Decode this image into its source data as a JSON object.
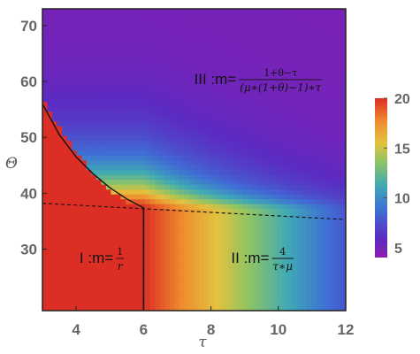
{
  "chart_data": {
    "type": "heatmap",
    "xlabel": "τ",
    "ylabel": "Θ",
    "xlim": [
      3,
      12
    ],
    "ylim": [
      19,
      73
    ],
    "xticks": [
      "4",
      "6",
      "8",
      "10",
      "12"
    ],
    "xtick_values": [
      4,
      6,
      8,
      10,
      12
    ],
    "yticks": [
      "30",
      "40",
      "50",
      "60",
      "70"
    ],
    "ytick_values": [
      30,
      40,
      50,
      60,
      70
    ],
    "colorbar": {
      "range": [
        4,
        20
      ],
      "ticks": [
        "5",
        "10",
        "15",
        "20"
      ],
      "tick_values": [
        5,
        10,
        15,
        20
      ]
    },
    "regions": [
      {
        "roman": "I",
        "prefix": " :m=",
        "formula_num": "1",
        "formula_den": "r",
        "anchor": [
          4.1,
          28.5
        ]
      },
      {
        "roman": "II",
        "prefix": " :m=",
        "formula_num": "4",
        "formula_den": "τ∗μ",
        "anchor": [
          8.6,
          28.5
        ]
      },
      {
        "roman": "III",
        "prefix": " :m=",
        "formula_num": "1+θ−τ",
        "formula_den": "(μ∗(1+θ)−1)∗τ",
        "anchor": [
          7.5,
          60.5
        ]
      }
    ],
    "boundaries": {
      "solid_curve": [
        [
          3,
          56
        ],
        [
          3.5,
          50.5
        ],
        [
          4,
          46.5
        ],
        [
          4.5,
          43.5
        ],
        [
          5,
          41
        ],
        [
          5.5,
          39
        ],
        [
          6,
          37.4
        ]
      ],
      "vertical_line_x": 6,
      "vertical_line_y": [
        19,
        37.4
      ],
      "dashed_line": [
        [
          3,
          38.2
        ],
        [
          12,
          35.3
        ]
      ]
    }
  }
}
